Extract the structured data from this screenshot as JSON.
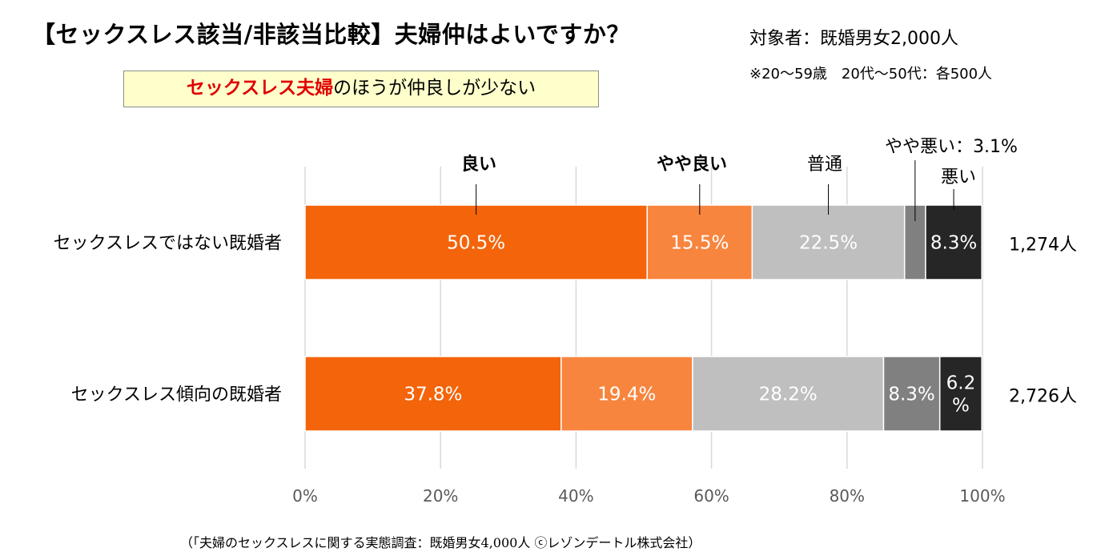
{
  "header": {
    "title": "【セックスレス該当/非該当比較】夫婦仲はよいですか？",
    "respondents": "対象者：既婚男女2,000人",
    "note": "※20～59歳　20代～50代：各500人"
  },
  "callout": {
    "highlight": "セックスレス夫婦",
    "rest": "のほうが仲良しが少ない"
  },
  "footer": {
    "source": "（「夫婦のセックスレスに関する実態調査：既婚男女4,000人 ⓒレゾンデートル株式会社）"
  },
  "chart_data": {
    "type": "bar",
    "orientation": "horizontal",
    "stacked": true,
    "percent": true,
    "categories": [
      "セックスレスではない既婚者",
      "セックスレス傾向の既婚者"
    ],
    "sample_sizes": [
      "1,274人",
      "2,726人"
    ],
    "series": [
      {
        "name": "良い",
        "color": "#f4640a",
        "values": [
          50.5,
          37.8
        ],
        "labels": [
          "50.5%",
          "37.8%"
        ]
      },
      {
        "name": "やや良い",
        "color": "#f7853e",
        "values": [
          15.5,
          19.4
        ],
        "labels": [
          "15.5%",
          "19.4%"
        ]
      },
      {
        "name": "普通",
        "color": "#bfbfbf",
        "values": [
          22.5,
          28.2
        ],
        "labels": [
          "22.5%",
          "28.2%"
        ]
      },
      {
        "name": "やや悪い",
        "color": "#808080",
        "values": [
          3.1,
          8.3
        ],
        "labels": [
          "",
          "8.3%"
        ]
      },
      {
        "name": "悪い",
        "color": "#262626",
        "values": [
          8.3,
          6.2
        ],
        "labels": [
          "8.3%",
          "6.2\n%"
        ]
      }
    ],
    "legend_callouts": [
      "良い",
      "やや良い",
      "普通",
      "やや悪い：3.1%",
      "悪い"
    ],
    "xlim": [
      0,
      100
    ],
    "x_ticks": [
      0,
      20,
      40,
      60,
      80,
      100
    ],
    "x_tick_labels": [
      "0%",
      "20%",
      "40%",
      "60%",
      "80%",
      "100%"
    ],
    "grid": true
  }
}
